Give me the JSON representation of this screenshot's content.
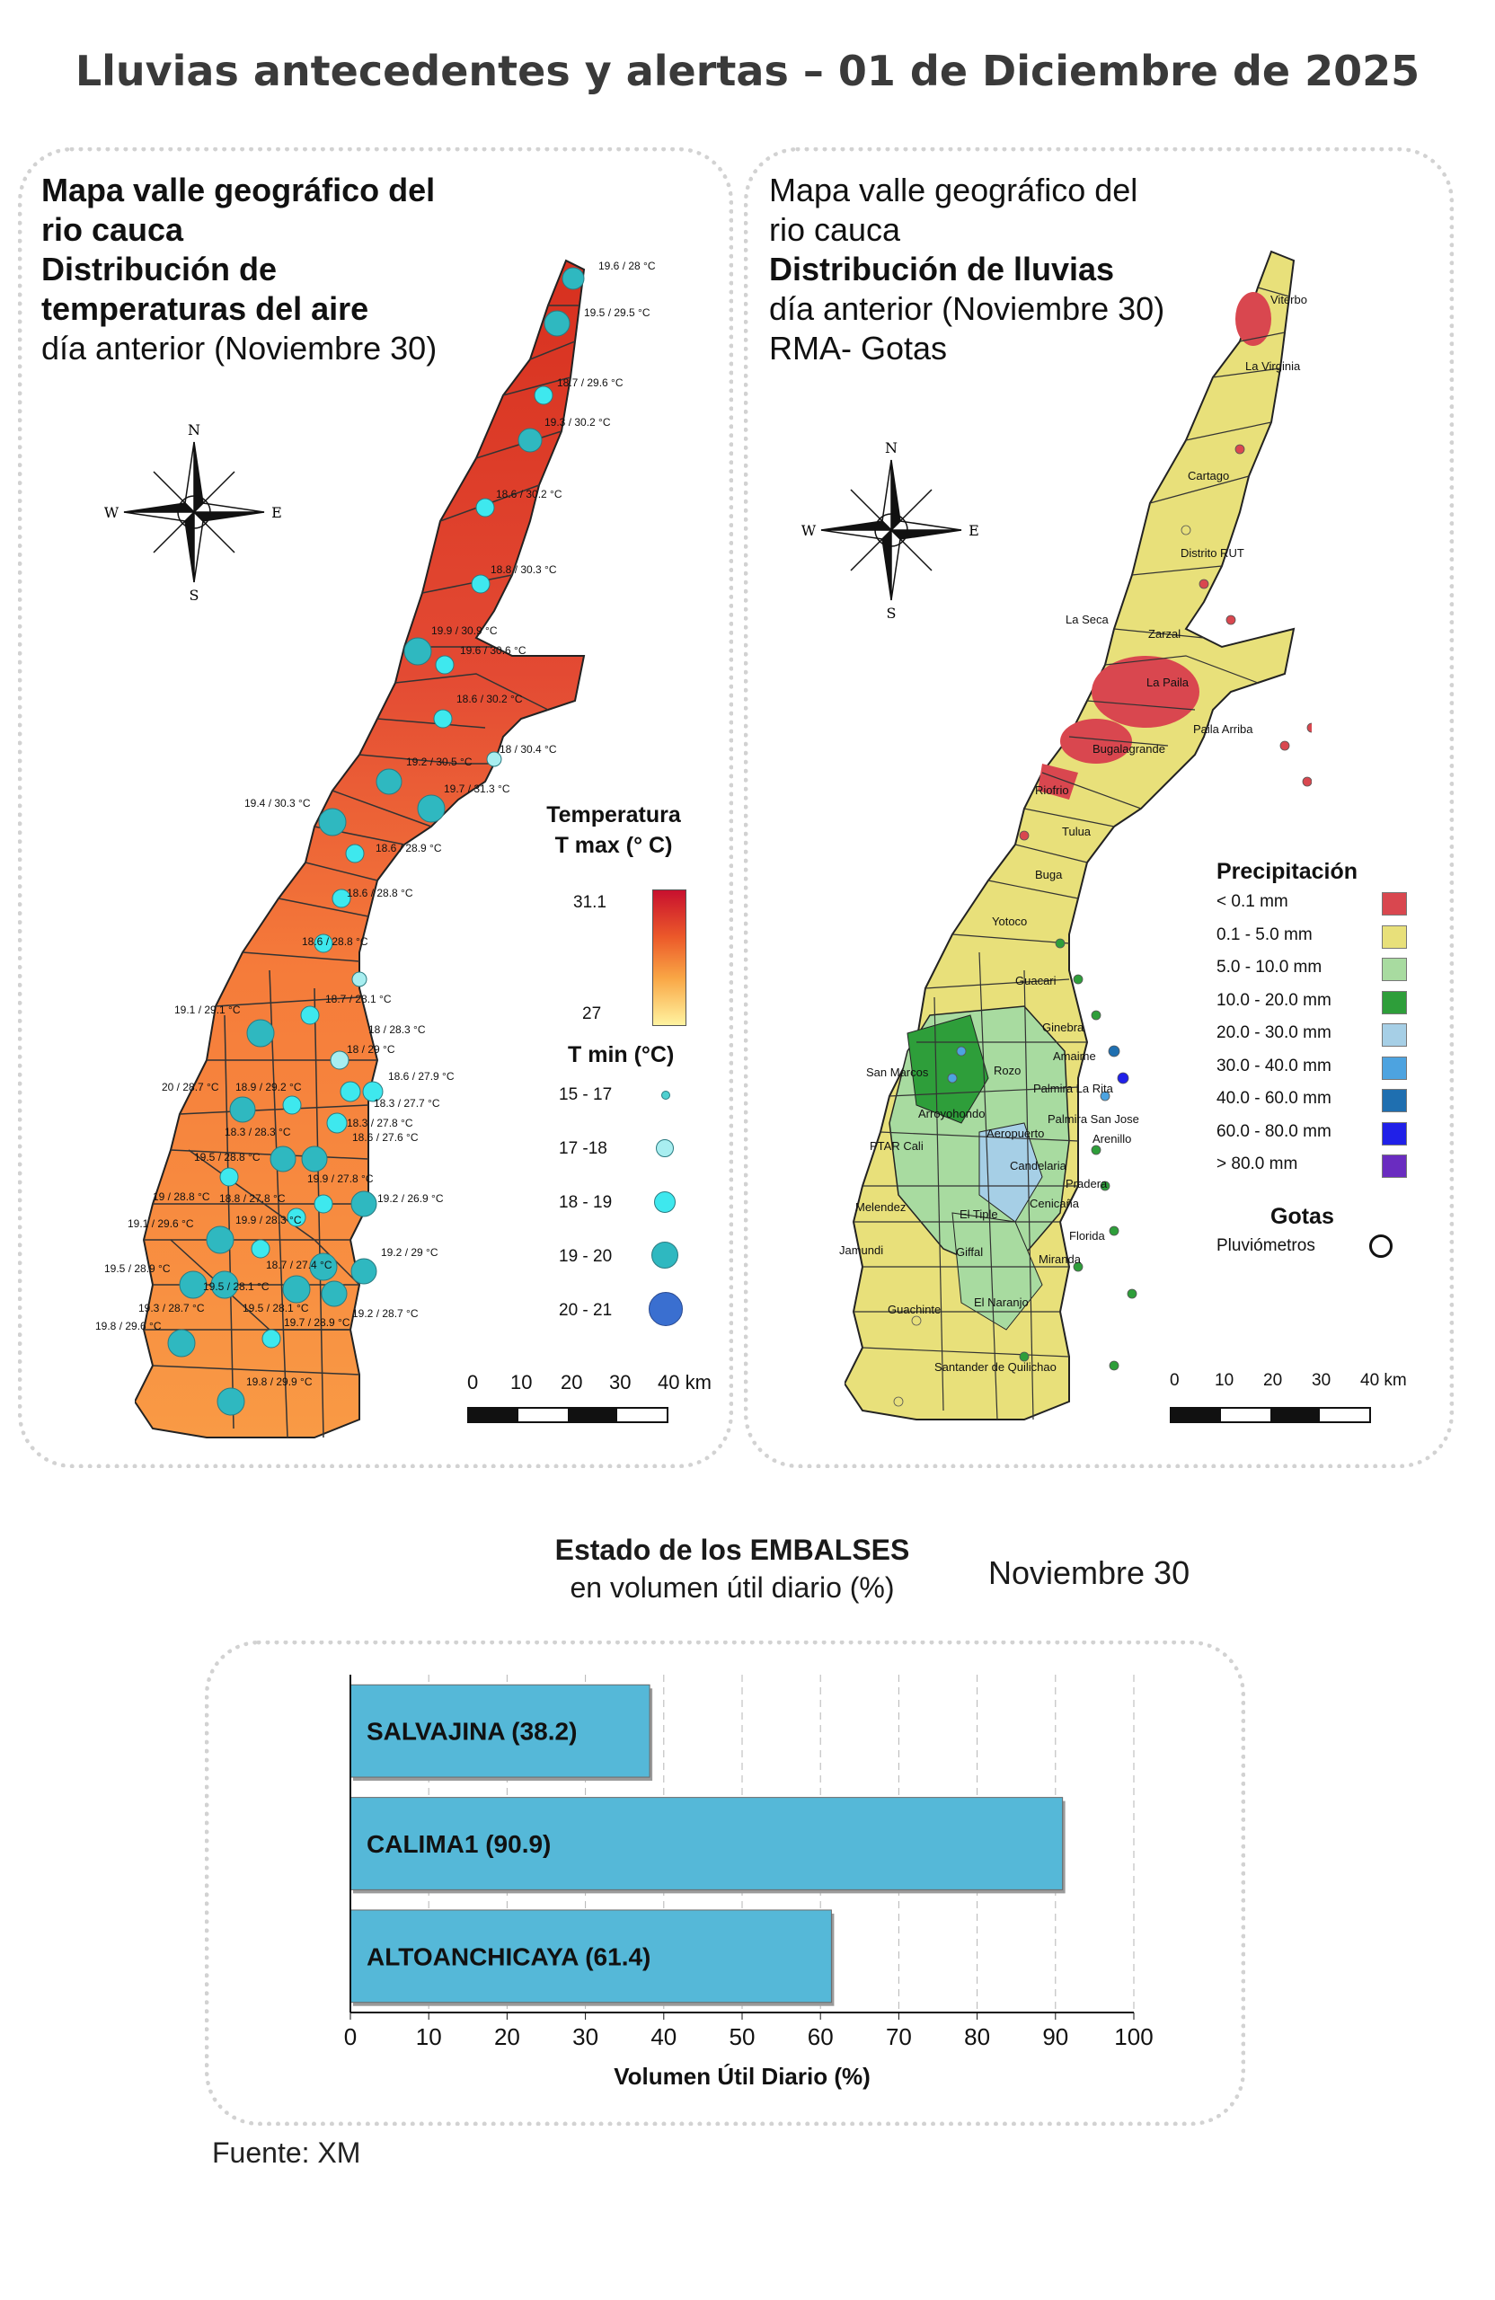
{
  "header": {
    "title": "Lluvias antecedentes y alertas – 01 de Diciembre de 2025"
  },
  "temperature_map": {
    "title_lines": [
      "Mapa valle geográfico del",
      "rio cauca",
      "Distribución de",
      "temperaturas del aire"
    ],
    "subtitle": "día anterior (Noviembre 30)",
    "tmax_legend": {
      "title_line1": "Temperatura",
      "title_line2": "T max (° C)",
      "max": "31.1",
      "min": "27",
      "color_high": "#d7191c",
      "color_mid": "#fdae61",
      "color_low": "#ffffbf"
    },
    "tmin_legend": {
      "title": "T min (°C)",
      "classes": [
        {
          "label": "15 - 17",
          "color": "#4fd0d0"
        },
        {
          "label": "17 -18",
          "color": "#a8eef0"
        },
        {
          "label": "18 - 19",
          "color": "#3ee8ee"
        },
        {
          "label": "19 - 20",
          "color": "#2fb8c0"
        },
        {
          "label": "20 - 21",
          "color": "#3a6fd0"
        }
      ]
    },
    "station_labels": [
      "19.6 / 28 °C",
      "19.5 / 29.5 °C",
      "18.7 / 29.6 °C",
      "19.3 / 30.2 °C",
      "18.6 / 30.2 °C",
      "18.8 / 30.3 °C",
      "19.9 / 30.9 °C",
      "19.6 / 30.6 °C",
      "18.6 / 30.2 °C",
      "18 / 30.4 °C",
      "19.2 / 30.5 °C",
      "19.7 / 31.3 °C",
      "19.4 / 30.3 °C",
      "18.6 / 28.9 °C",
      "18.6 / 28.8 °C",
      "18.6 / 28.8 °C",
      "18.7 / 28.1 °C",
      "19.1 / 29.1 °C",
      "18 / 28.3 °C",
      "18 / 29 °C",
      "18.6 / 27.9 °C",
      "20 / 28.7 °C",
      "18.9 / 29.2 °C",
      "18.3 / 27.7 °C",
      "18.3 / 28.3 °C",
      "18.3 / 27.8 °C",
      "18.6 / 27.6 °C",
      "19.5 / 28.8 °C",
      "19.9 / 27.8 °C",
      "19 / 28.8 °C",
      "18.8 / 27.8 °C",
      "19.2 / 26.9 °C",
      "19.1 / 29.6 °C",
      "19.9 / 28.3 °C",
      "19.5 / 28.9 °C",
      "19.5 / 28.1 °C",
      "18.7 / 27.4 °C",
      "19.2 / 29 °C",
      "19.3 / 28.7 °C",
      "19.5 / 28.1 °C",
      "19.7 / 28.9 °C",
      "19.2 / 28.7 °C",
      "19.8 / 29.6 °C",
      "19.8 / 29.9 °C"
    ],
    "compass": {
      "n": "N",
      "s": "S",
      "e": "E",
      "w": "W"
    },
    "scale": {
      "ticks": [
        "0",
        "10",
        "20",
        "30",
        "40 km"
      ]
    }
  },
  "rain_map": {
    "title_lines": [
      "Mapa valle geográfico del",
      "rio cauca"
    ],
    "bold_line": "Distribución de lluvias",
    "subtitle_lines": [
      "día anterior (Noviembre 30)",
      "RMA- Gotas"
    ],
    "cities": [
      "Viterbo",
      "La Virginia",
      "Cartago",
      "Distrito RUT",
      "La Seca",
      "Zarzal",
      "La Paila",
      "Paila Arriba",
      "Bugalagrande",
      "Riofrio",
      "Tulua",
      "Buga",
      "Yotoco",
      "Guacari",
      "Ginebra",
      "Amaime",
      "San Marcos",
      "Rozo",
      "Palmira La Rita",
      "Arroyohondo",
      "Palmira San Jose",
      "Aeropuerto",
      "Arenillo",
      "PTAR Cali",
      "Candelaria",
      "Pradera",
      "Melendez",
      "El Tiple",
      "Cenicaña",
      "Florida",
      "Jamundi",
      "Giffal",
      "Miranda",
      "El Naranjo",
      "Guachinte",
      "Santander de Quilichao"
    ],
    "legend": {
      "title": "Precipitación",
      "classes": [
        {
          "label": "< 0.1 mm",
          "color": "#d9474f"
        },
        {
          "label": "0.1 - 5.0 mm",
          "color": "#e8e07a"
        },
        {
          "label": "5.0 - 10.0 mm",
          "color": "#a8dba0"
        },
        {
          "label": "10.0 - 20.0 mm",
          "color": "#2e9e3a"
        },
        {
          "label": "20.0 - 30.0 mm",
          "color": "#a6cfe6"
        },
        {
          "label": "30.0 - 40.0 mm",
          "color": "#4da3e0"
        },
        {
          "label": "40.0 - 60.0 mm",
          "color": "#1f6fb0"
        },
        {
          "label": "60.0 - 80.0 mm",
          "color": "#2020e8"
        },
        {
          "label": "> 80.0 mm",
          "color": "#6a2cc0"
        }
      ],
      "gotas_title": "Gotas",
      "gotas_item": "Pluviómetros"
    },
    "compass": {
      "n": "N",
      "s": "S",
      "e": "E",
      "w": "W"
    },
    "scale": {
      "ticks": [
        "0",
        "10",
        "20",
        "30",
        "40 km"
      ]
    }
  },
  "reservoirs": {
    "title_bold": "Estado de los EMBALSES",
    "title_normal": "en volumen útil diario (%)",
    "date": "Noviembre 30",
    "source": "Fuente: XM",
    "chart_data": {
      "type": "bar",
      "orientation": "horizontal",
      "categories": [
        "SALVAJINA (38.2)",
        "CALIMA1 (90.9)",
        "ALTOANCHICAYA (61.4)"
      ],
      "values": [
        38.2,
        90.9,
        61.4
      ],
      "xlabel": "Volumen Útil Diario (%)",
      "xlim": [
        0,
        100
      ],
      "xticks": [
        "0",
        "10",
        "20",
        "30",
        "40",
        "50",
        "60",
        "70",
        "80",
        "90",
        "100"
      ],
      "bar_color": "#55b8d8",
      "grid": "vertical dashed"
    }
  }
}
